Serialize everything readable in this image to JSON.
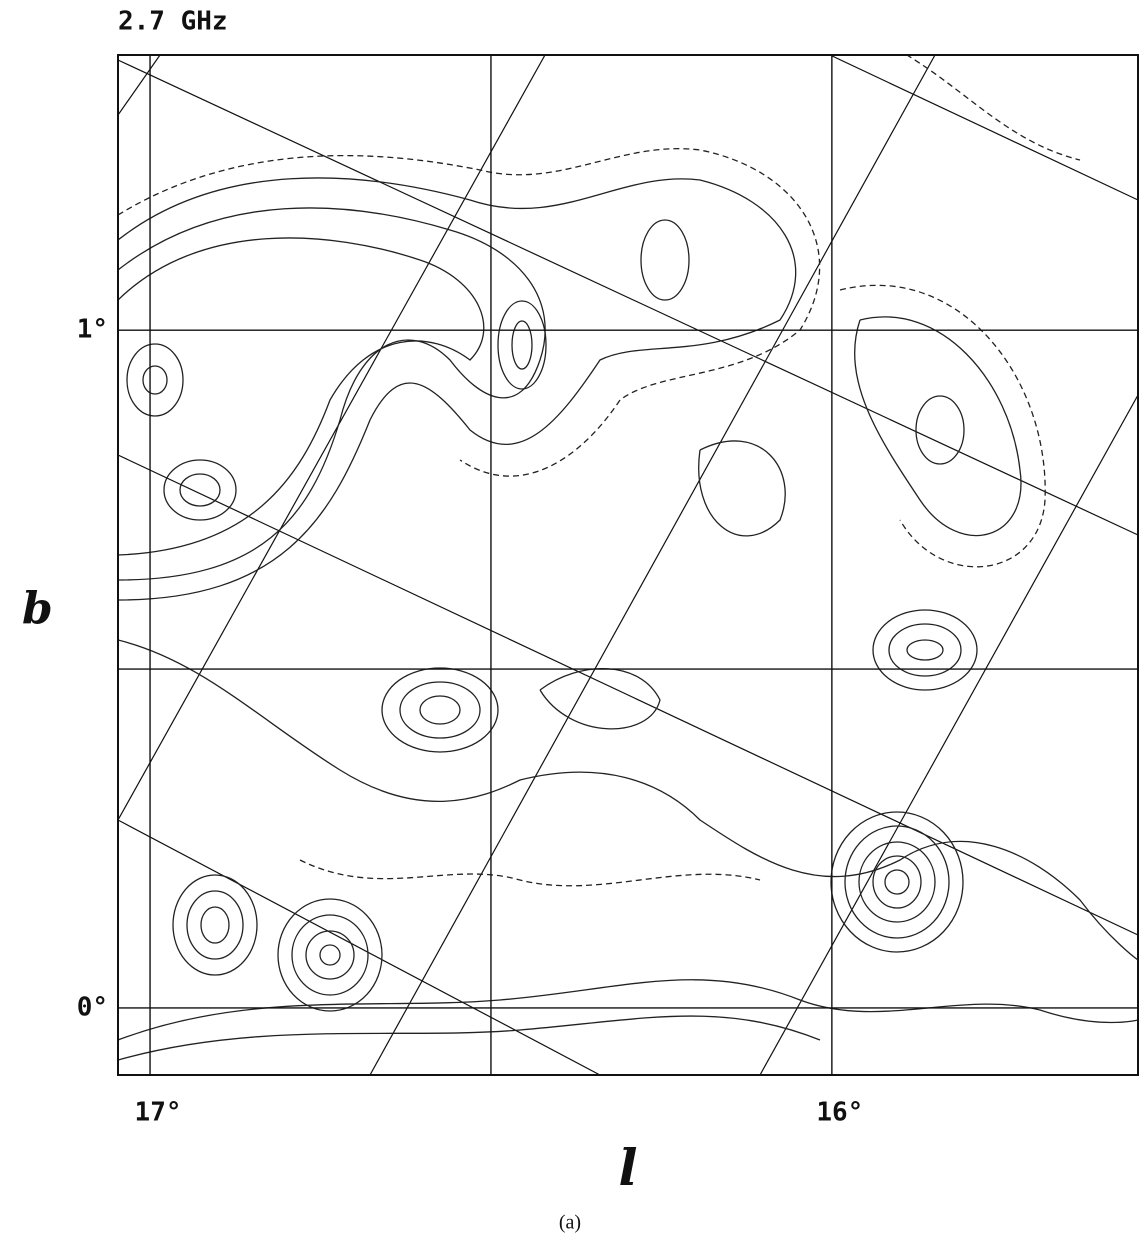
{
  "chart_data": {
    "type": "contour",
    "title": "2.7 GHz",
    "xlabel": "l",
    "ylabel": "b",
    "caption": "(a)",
    "xlim": [
      17.047,
      15.551
    ],
    "ylim": [
      -0.099,
      1.406
    ],
    "xticks": [
      {
        "value": 17,
        "label": "17°"
      },
      {
        "value": 16.5,
        "label": null
      },
      {
        "value": 16,
        "label": "16°"
      }
    ],
    "yticks": [
      {
        "value": 0,
        "label": "0°"
      },
      {
        "value": 0.5,
        "label": null
      },
      {
        "value": 1,
        "label": "1°"
      }
    ],
    "grid": true,
    "color": "#111111"
  }
}
